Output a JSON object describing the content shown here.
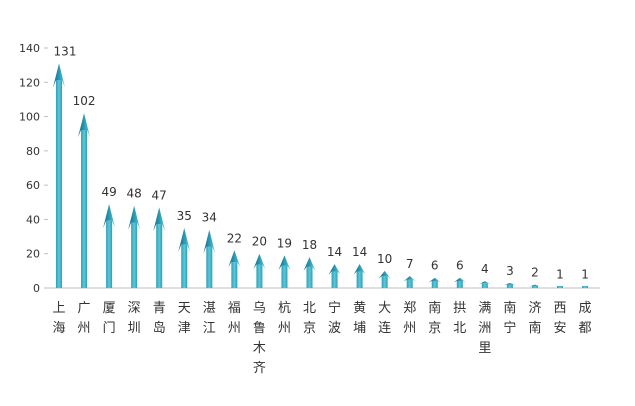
{
  "colors": {
    "arrow_light": "#5ec8d8",
    "arrow_mid": "#2a9fb6",
    "arrow_dark": "#1a5f86",
    "axis": "#bfbfbf",
    "text": "#333333"
  },
  "chart_data": {
    "type": "bar",
    "mark": "arrow",
    "categories": [
      "上海",
      "广州",
      "厦门",
      "深圳",
      "青岛",
      "天津",
      "湛江",
      "福州",
      "乌鲁木齐",
      "杭州",
      "北京",
      "宁波",
      "黄埔",
      "大连",
      "郑州",
      "南京",
      "拱北",
      "满洲里",
      "南宁",
      "济南",
      "西安",
      "成都"
    ],
    "values": [
      131,
      102,
      49,
      48,
      47,
      35,
      34,
      22,
      20,
      19,
      18,
      14,
      14,
      10,
      7,
      6,
      6,
      4,
      3,
      2,
      1,
      1
    ],
    "yticks": [
      0,
      20,
      40,
      60,
      80,
      100,
      120,
      140
    ],
    "ylim": [
      0,
      140
    ],
    "grid": false,
    "legend": "none",
    "title": "",
    "xlabel": "",
    "ylabel": ""
  }
}
